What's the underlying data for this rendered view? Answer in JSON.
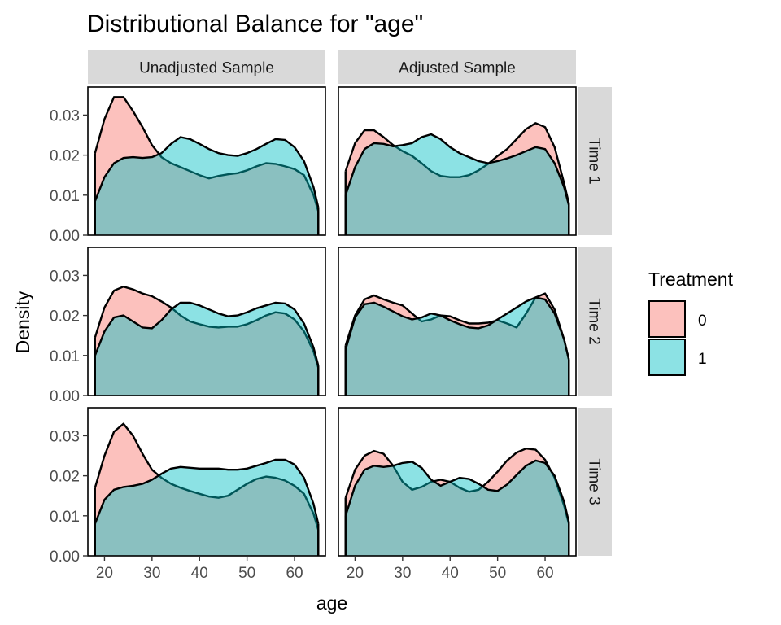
{
  "chart_data": {
    "type": "area",
    "title": "Distributional Balance for \"age\"",
    "xlabel": "age",
    "ylabel": "Density",
    "xlim": [
      16.5,
      66.5
    ],
    "ylim": [
      0,
      0.037
    ],
    "x_ticks": [
      20,
      30,
      40,
      50,
      60
    ],
    "x_tick_labels": [
      "20",
      "30",
      "40",
      "50",
      "60"
    ],
    "y_ticks": [
      0,
      0.01,
      0.02,
      0.03
    ],
    "y_tick_labels": [
      "0.00",
      "0.01",
      "0.02",
      "0.03"
    ],
    "grid": false,
    "facet_columns": [
      "Unadjusted Sample",
      "Adjusted Sample"
    ],
    "facet_rows": [
      "Time 1",
      "Time 2",
      "Time 3"
    ],
    "legend": {
      "title": "Treatment",
      "position": "right",
      "items": [
        {
          "label": "0",
          "color": "#F8766D"
        },
        {
          "label": "1",
          "color": "#00BFC4"
        }
      ]
    },
    "fill_opacity": 0.45,
    "x": [
      18,
      20,
      22,
      24,
      26,
      28,
      30,
      32,
      34,
      36,
      38,
      40,
      42,
      44,
      46,
      48,
      50,
      52,
      54,
      56,
      58,
      60,
      62,
      64,
      65
    ],
    "panels": [
      {
        "row": "Time 1",
        "col": "Unadjusted Sample",
        "series": [
          {
            "name": "0",
            "values": [
              0.0205,
              0.029,
              0.0345,
              0.0345,
              0.031,
              0.027,
              0.0225,
              0.0195,
              0.018,
              0.017,
              0.016,
              0.015,
              0.0142,
              0.0148,
              0.0152,
              0.0155,
              0.0162,
              0.0172,
              0.018,
              0.0178,
              0.0172,
              0.0165,
              0.015,
              0.01,
              0.006
            ]
          },
          {
            "name": "1",
            "values": [
              0.0085,
              0.0145,
              0.018,
              0.0193,
              0.0195,
              0.0193,
              0.0195,
              0.0205,
              0.0228,
              0.0245,
              0.024,
              0.0228,
              0.0215,
              0.0205,
              0.02,
              0.0198,
              0.0205,
              0.0215,
              0.0228,
              0.024,
              0.0238,
              0.022,
              0.0185,
              0.012,
              0.007
            ]
          }
        ]
      },
      {
        "row": "Time 1",
        "col": "Adjusted Sample",
        "series": [
          {
            "name": "0",
            "values": [
              0.016,
              0.023,
              0.0262,
              0.0262,
              0.0245,
              0.0225,
              0.021,
              0.0198,
              0.018,
              0.016,
              0.0148,
              0.0145,
              0.0145,
              0.015,
              0.0162,
              0.0178,
              0.0198,
              0.0215,
              0.024,
              0.0265,
              0.028,
              0.027,
              0.022,
              0.013,
              0.008
            ]
          },
          {
            "name": "1",
            "values": [
              0.01,
              0.017,
              0.0215,
              0.023,
              0.0228,
              0.0222,
              0.0225,
              0.023,
              0.0245,
              0.0252,
              0.024,
              0.022,
              0.0205,
              0.0195,
              0.0185,
              0.018,
              0.0185,
              0.0192,
              0.02,
              0.021,
              0.022,
              0.0215,
              0.018,
              0.012,
              0.0075
            ]
          }
        ]
      },
      {
        "row": "Time 2",
        "col": "Unadjusted Sample",
        "series": [
          {
            "name": "0",
            "values": [
              0.0145,
              0.022,
              0.0262,
              0.0272,
              0.0265,
              0.0255,
              0.0248,
              0.0235,
              0.022,
              0.02,
              0.0185,
              0.0178,
              0.0172,
              0.017,
              0.0172,
              0.0172,
              0.0178,
              0.0188,
              0.02,
              0.0208,
              0.0205,
              0.019,
              0.016,
              0.011,
              0.007
            ]
          },
          {
            "name": "1",
            "values": [
              0.01,
              0.016,
              0.0195,
              0.02,
              0.0185,
              0.017,
              0.0168,
              0.0188,
              0.0215,
              0.0232,
              0.0232,
              0.0225,
              0.0215,
              0.0205,
              0.0198,
              0.02,
              0.0208,
              0.0218,
              0.0225,
              0.0232,
              0.023,
              0.0215,
              0.018,
              0.012,
              0.0075
            ]
          }
        ]
      },
      {
        "row": "Time 2",
        "col": "Adjusted Sample",
        "series": [
          {
            "name": "0",
            "values": [
              0.0125,
              0.02,
              0.024,
              0.025,
              0.024,
              0.0232,
              0.0225,
              0.0205,
              0.0185,
              0.019,
              0.02,
              0.0198,
              0.0188,
              0.018,
              0.018,
              0.0182,
              0.0188,
              0.018,
              0.017,
              0.0205,
              0.0245,
              0.0255,
              0.0215,
              0.014,
              0.009
            ]
          },
          {
            "name": "1",
            "values": [
              0.0115,
              0.0195,
              0.0228,
              0.0232,
              0.0222,
              0.021,
              0.0198,
              0.019,
              0.0195,
              0.0205,
              0.02,
              0.0188,
              0.0178,
              0.017,
              0.0168,
              0.0175,
              0.019,
              0.0205,
              0.022,
              0.0235,
              0.0245,
              0.024,
              0.0205,
              0.014,
              0.009
            ]
          }
        ]
      },
      {
        "row": "Time 3",
        "col": "Unadjusted Sample",
        "series": [
          {
            "name": "0",
            "values": [
              0.017,
              0.025,
              0.031,
              0.033,
              0.03,
              0.0255,
              0.0215,
              0.0195,
              0.018,
              0.017,
              0.0162,
              0.0155,
              0.0148,
              0.0145,
              0.015,
              0.0165,
              0.018,
              0.0192,
              0.0198,
              0.0195,
              0.0188,
              0.0175,
              0.0155,
              0.0105,
              0.0065
            ]
          },
          {
            "name": "1",
            "values": [
              0.008,
              0.014,
              0.0165,
              0.0172,
              0.0175,
              0.018,
              0.019,
              0.0205,
              0.0218,
              0.0222,
              0.022,
              0.0218,
              0.0218,
              0.0218,
              0.0215,
              0.0215,
              0.0218,
              0.0225,
              0.0232,
              0.024,
              0.024,
              0.0228,
              0.0195,
              0.013,
              0.008
            ]
          }
        ]
      },
      {
        "row": "Time 3",
        "col": "Adjusted Sample",
        "series": [
          {
            "name": "0",
            "values": [
              0.0145,
              0.0215,
              0.025,
              0.0262,
              0.0255,
              0.0225,
              0.0185,
              0.0165,
              0.0172,
              0.0185,
              0.019,
              0.0185,
              0.017,
              0.016,
              0.0165,
              0.0185,
              0.021,
              0.0238,
              0.0258,
              0.0268,
              0.0265,
              0.024,
              0.0195,
              0.0125,
              0.008
            ]
          },
          {
            "name": "1",
            "values": [
              0.01,
              0.0175,
              0.0215,
              0.0225,
              0.0222,
              0.0225,
              0.0232,
              0.0235,
              0.022,
              0.019,
              0.0175,
              0.0185,
              0.0195,
              0.0192,
              0.018,
              0.0165,
              0.0162,
              0.0178,
              0.0202,
              0.0225,
              0.0238,
              0.0232,
              0.02,
              0.0135,
              0.0085
            ]
          }
        ]
      }
    ]
  }
}
